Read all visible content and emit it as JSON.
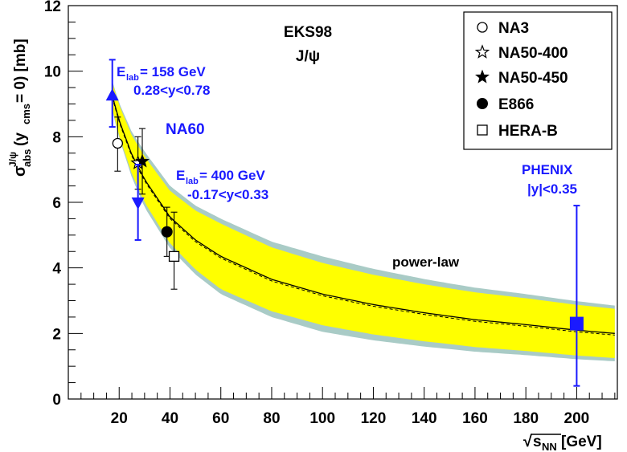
{
  "chart_data": {
    "type": "scatter",
    "title": "EKS98",
    "subtitle": "J/ψ",
    "xlabel": {
      "prefix": "√",
      "main": "s",
      "sub": "NN",
      "unit": " [GeV]"
    },
    "ylabel": {
      "sigma": "σ",
      "sup": "J/ψ",
      "sub": "abs",
      "open": " (y",
      "cms": "cms",
      "rest": " = 0) [mb]"
    },
    "xlim": [
      0,
      216
    ],
    "ylim": [
      0,
      12
    ],
    "x_major_ticks": [
      20,
      40,
      60,
      80,
      100,
      120,
      140,
      160,
      180,
      200
    ],
    "y_major_ticks": [
      0,
      2,
      4,
      6,
      8,
      10,
      12
    ],
    "x_tick_labels": [
      "20",
      "40",
      "60",
      "80",
      "100",
      "120",
      "140",
      "160",
      "180",
      "200"
    ],
    "y_tick_labels": [
      "0",
      "2",
      "4",
      "6",
      "8",
      "10",
      "12"
    ],
    "grid": false,
    "legend_position": "top-right",
    "legend": [
      {
        "name": "NA3",
        "marker": "open-circle"
      },
      {
        "name": "NA50-400",
        "marker": "open-star"
      },
      {
        "name": "NA50-450",
        "marker": "filled-star"
      },
      {
        "name": "E866",
        "marker": "filled-circle"
      },
      {
        "name": "HERA-B",
        "marker": "open-square"
      }
    ],
    "series": [
      {
        "name": "NA3",
        "marker": "open-circle",
        "color": "#000000",
        "x": 19.4,
        "y": 7.8,
        "yerr_low": 0.85,
        "yerr_high": 0.8
      },
      {
        "name": "NA50-400",
        "marker": "open-star",
        "color": "#000000",
        "x": 27.4,
        "y": 7.2,
        "yerr_low": 0.8,
        "yerr_high": 0.8
      },
      {
        "name": "NA50-450",
        "marker": "filled-star",
        "color": "#000000",
        "x": 29.1,
        "y": 7.25,
        "yerr_low": 1.0,
        "yerr_high": 1.0
      },
      {
        "name": "E866",
        "marker": "filled-circle",
        "color": "#000000",
        "x": 38.8,
        "y": 5.1,
        "yerr_low": 0.75,
        "yerr_high": 0.75
      },
      {
        "name": "HERA-B",
        "marker": "open-square",
        "color": "#000000",
        "x": 41.6,
        "y": 4.35,
        "yerr_low": 1.0,
        "yerr_high": 1.35
      },
      {
        "name": "NA60 158 GeV",
        "marker": "filled-triangle-up",
        "color": "#1a1aff",
        "x": 17.3,
        "y": 9.25,
        "yerr_low": 0.95,
        "yerr_high": 1.1
      },
      {
        "name": "NA60 400 GeV",
        "marker": "filled-triangle-down",
        "color": "#1a1aff",
        "x": 27.4,
        "y": 6.0,
        "yerr_low": 1.15,
        "yerr_high": 1.15
      },
      {
        "name": "PHENIX",
        "marker": "filled-square",
        "color": "#1a1aff",
        "x": 200,
        "y": 2.3,
        "yerr_low": 1.9,
        "yerr_high": 3.6
      }
    ],
    "fit": {
      "name": "power-law",
      "curve_points": [
        [
          17.3,
          9.25
        ],
        [
          20,
          8.5
        ],
        [
          25,
          7.45
        ],
        [
          30,
          6.7
        ],
        [
          40,
          5.55
        ],
        [
          50,
          4.85
        ],
        [
          60,
          4.35
        ],
        [
          80,
          3.65
        ],
        [
          100,
          3.2
        ],
        [
          120,
          2.88
        ],
        [
          140,
          2.63
        ],
        [
          160,
          2.42
        ],
        [
          180,
          2.27
        ],
        [
          200,
          2.1
        ],
        [
          215,
          2.0
        ]
      ],
      "band_inner_half_width": [
        [
          17.3,
          0.4
        ],
        [
          30,
          0.7
        ],
        [
          60,
          1.0
        ],
        [
          100,
          0.95
        ],
        [
          150,
          0.85
        ],
        [
          215,
          0.75
        ]
      ],
      "band_outer_half_width": [
        [
          17.3,
          0.45
        ],
        [
          30,
          0.85
        ],
        [
          60,
          1.15
        ],
        [
          100,
          1.15
        ],
        [
          150,
          1.0
        ],
        [
          215,
          0.85
        ]
      ],
      "inner_color": "#ffff00",
      "outer_color": "#a9cbc6"
    },
    "annotations": {
      "na60_label": "NA60",
      "e158_prefix": "E",
      "e158_sub": "lab",
      "e158_value": " = 158 GeV",
      "e158_range": "0.28<y<0.78",
      "e400_prefix": "E",
      "e400_sub": "lab",
      "e400_value": " = 400 GeV",
      "e400_range": "-0.17<y<0.33",
      "phenix": "PHENIX",
      "phenix_range": "|y|<0.35",
      "power_law": "power-law"
    }
  }
}
